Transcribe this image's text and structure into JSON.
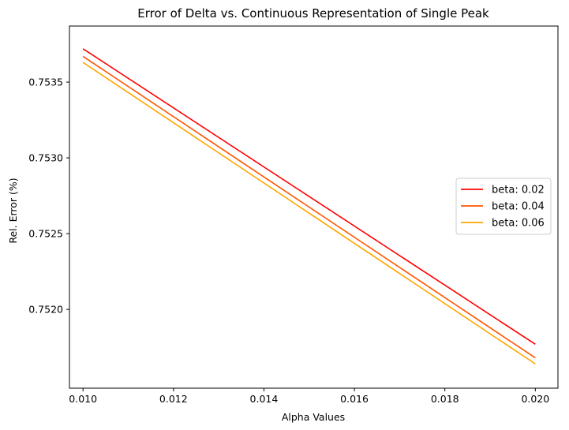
{
  "chart_data": {
    "type": "line",
    "title": "Error of Delta vs. Continuous Representation of Single Peak",
    "xlabel": "Alpha Values",
    "ylabel": "Rel. Error (%)",
    "xlim": [
      0.0097,
      0.0205
    ],
    "ylim": [
      0.75148,
      0.75387
    ],
    "x_ticks": [
      0.01,
      0.012,
      0.014,
      0.016,
      0.018,
      0.02
    ],
    "x_tick_labels": [
      "0.010",
      "0.012",
      "0.014",
      "0.016",
      "0.018",
      "0.020"
    ],
    "y_ticks": [
      0.752,
      0.7525,
      0.753,
      0.7535
    ],
    "y_tick_labels": [
      "0.7520",
      "0.7525",
      "0.7530",
      "0.7535"
    ],
    "grid": false,
    "legend_position": "center-right",
    "x": [
      0.01,
      0.02
    ],
    "series": [
      {
        "name": "beta: 0.02",
        "color": "#ff0000",
        "values": [
          0.75372,
          0.75177
        ]
      },
      {
        "name": "beta: 0.04",
        "color": "#ff5500",
        "values": [
          0.75367,
          0.75168
        ]
      },
      {
        "name": "beta: 0.06",
        "color": "#ffa500",
        "values": [
          0.75363,
          0.75164
        ]
      }
    ]
  }
}
